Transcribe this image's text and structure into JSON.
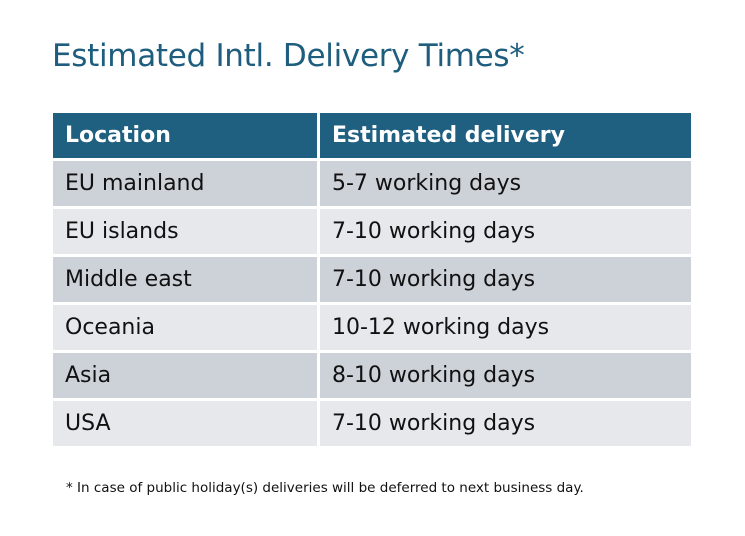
{
  "title": "Estimated Intl. Delivery Times*",
  "table": {
    "headers": [
      "Location",
      "Estimated delivery"
    ],
    "rows": [
      [
        "EU mainland",
        "5-7 working days"
      ],
      [
        "EU islands",
        "7-10 working days"
      ],
      [
        "Middle east",
        "7-10 working days"
      ],
      [
        "Oceania",
        "10-12 working days"
      ],
      [
        "Asia",
        "8-10 working days"
      ],
      [
        "USA",
        "7-10 working days"
      ]
    ]
  },
  "footnote": "* In case of public holiday(s) deliveries will be deferred to next business day.",
  "colors": {
    "header": "#1f5f80",
    "title": "#1f5d7e",
    "row_dark": "#cdd1d8",
    "row_light": "#e6e8eb"
  }
}
